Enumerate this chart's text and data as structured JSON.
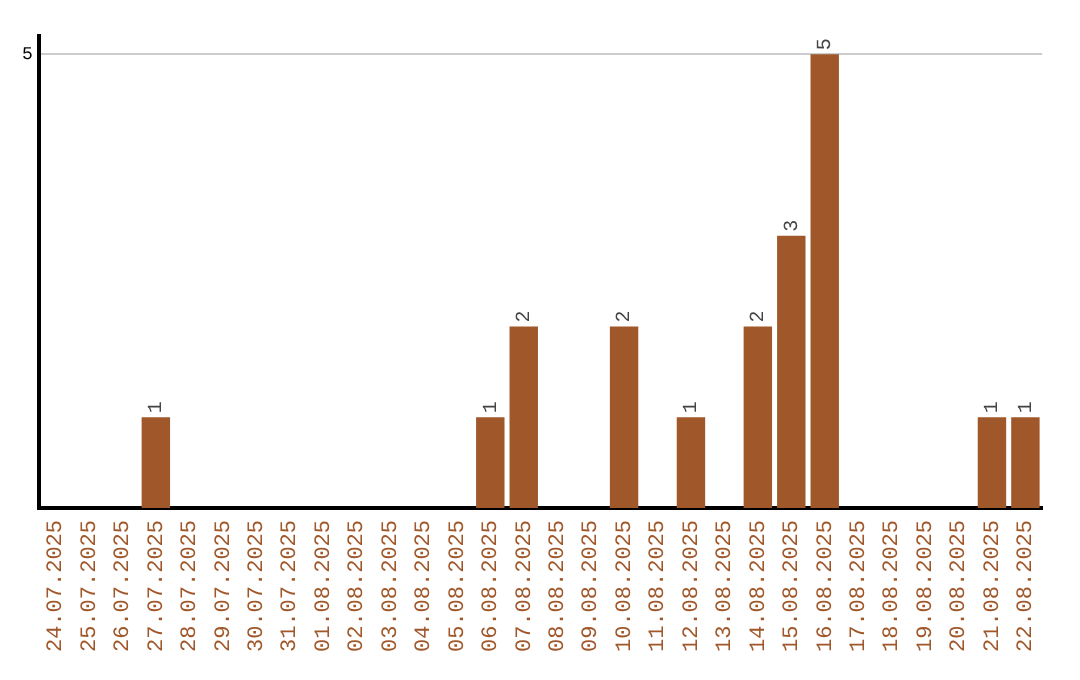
{
  "chart_data": {
    "type": "bar",
    "categories": [
      "24.07.2025",
      "25.07.2025",
      "26.07.2025",
      "27.07.2025",
      "28.07.2025",
      "29.07.2025",
      "30.07.2025",
      "31.07.2025",
      "01.08.2025",
      "02.08.2025",
      "03.08.2025",
      "04.08.2025",
      "05.08.2025",
      "06.08.2025",
      "07.08.2025",
      "08.08.2025",
      "09.08.2025",
      "10.08.2025",
      "11.08.2025",
      "12.08.2025",
      "13.08.2025",
      "14.08.2025",
      "15.08.2025",
      "16.08.2025",
      "17.08.2025",
      "18.08.2025",
      "19.08.2025",
      "20.08.2025",
      "21.08.2025",
      "22.08.2025"
    ],
    "values": [
      0,
      0,
      0,
      1,
      0,
      0,
      0,
      0,
      0,
      0,
      0,
      0,
      0,
      1,
      2,
      0,
      0,
      2,
      0,
      1,
      0,
      2,
      3,
      5,
      0,
      0,
      0,
      0,
      1,
      1
    ],
    "value_labels": [
      null,
      null,
      null,
      "1",
      null,
      null,
      null,
      null,
      null,
      null,
      null,
      null,
      null,
      "1",
      "2",
      null,
      null,
      "2",
      null,
      "1",
      null,
      "2",
      "3",
      "5",
      null,
      null,
      null,
      null,
      "1",
      "1"
    ],
    "color": "#a0582a",
    "ylim": [
      0,
      5.2
    ],
    "yticks": [
      5
    ],
    "grid": "y",
    "legend": false
  }
}
